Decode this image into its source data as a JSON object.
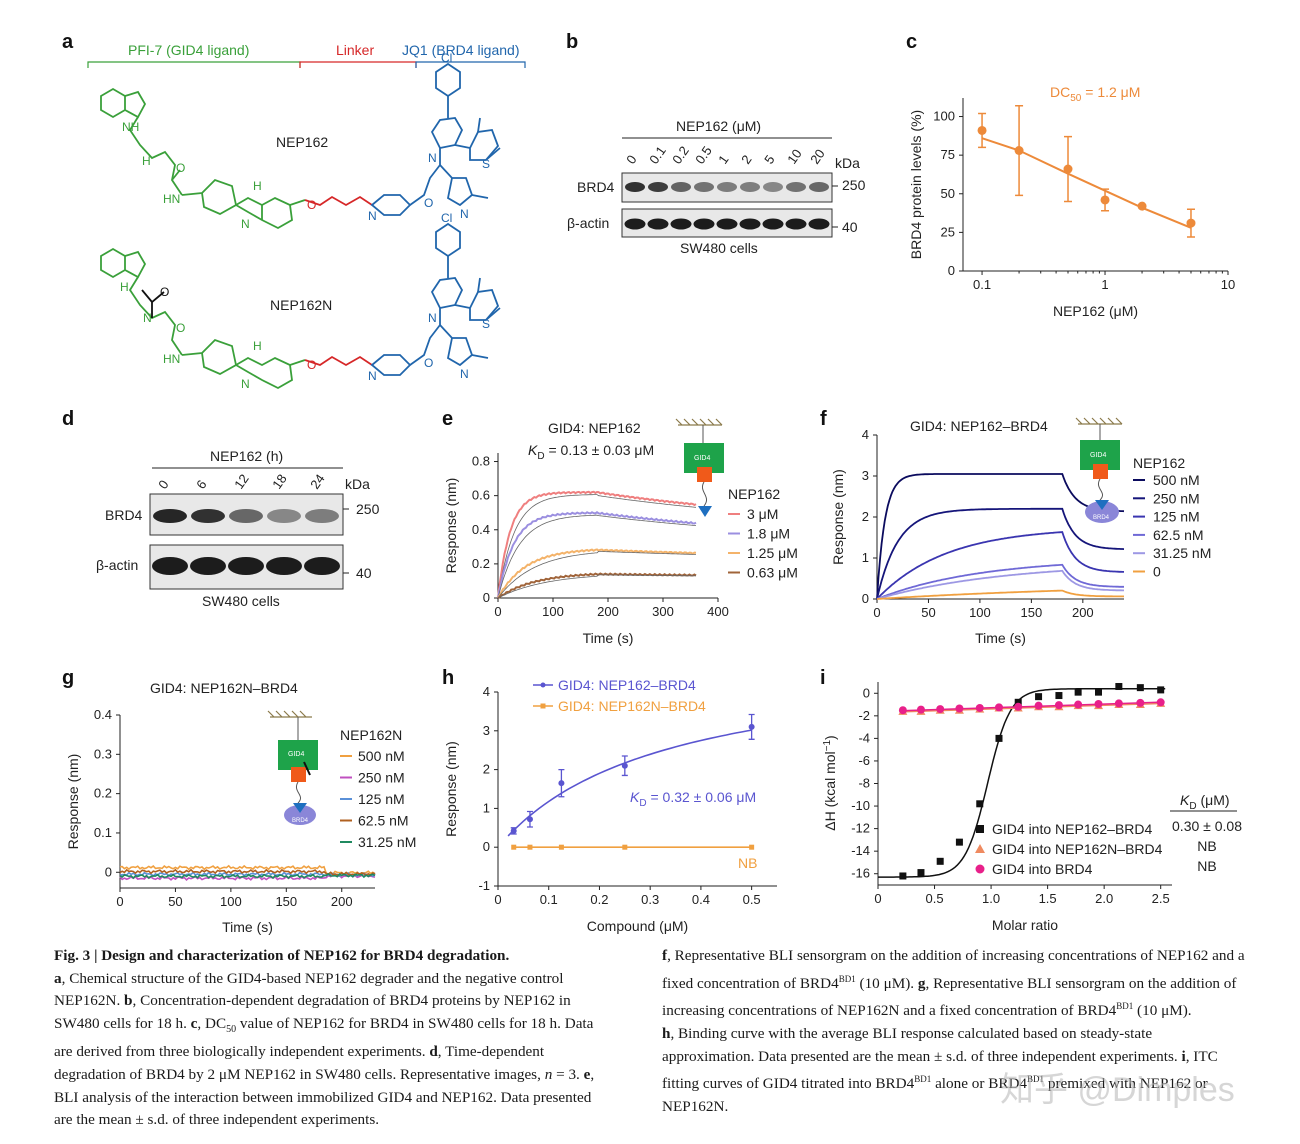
{
  "panels": {
    "a": {
      "label": "a",
      "segments": [
        {
          "text": "PFI-7 (GID4 ligand)",
          "color": "#3aa03a"
        },
        {
          "text": "Linker",
          "color": "#d62728"
        },
        {
          "text": "JQ1 (BRD4 ligand)",
          "color": "#2166ac"
        }
      ],
      "mol1": "NEP162",
      "mol2": "NEP162N",
      "atoms": {
        "nh": "NH",
        "h": "H",
        "n": "N",
        "o": "O",
        "cl": "Cl",
        "s": "S",
        "hn": "HN"
      }
    },
    "b": {
      "label": "b",
      "treatment": "NEP162 (μM)",
      "lanes": [
        "0",
        "0.1",
        "0.2",
        "0.5",
        "1",
        "2",
        "5",
        "10",
        "20"
      ],
      "rows": [
        "BRD4",
        "β-actin"
      ],
      "kda_header": "kDa",
      "kda": [
        "250",
        "40"
      ],
      "cells": "SW480 cells"
    },
    "d": {
      "label": "d",
      "treatment": "NEP162 (h)",
      "lanes": [
        "0",
        "6",
        "12",
        "18",
        "24"
      ],
      "rows": [
        "BRD4",
        "β-actin"
      ],
      "kda_header": "kDa",
      "kda": [
        "250",
        "40"
      ],
      "cells": "SW480 cells"
    }
  },
  "chart_data": [
    {
      "panel": "c",
      "type": "scatter",
      "title": "DC50 = 1.2 μM",
      "title_main": "DC",
      "title_sub": "50",
      "title_rest": " = 1.2 μM",
      "xlabel": "NEP162 (μM)",
      "ylabel": "BRD4 protein levels (%)",
      "xscale": "log",
      "xlim": [
        0.07,
        10
      ],
      "ylim": [
        0,
        112
      ],
      "xticks": [
        0.1,
        1,
        10
      ],
      "xticklabels": [
        "0.1",
        "1",
        "10"
      ],
      "yticks": [
        0,
        25,
        50,
        75,
        100
      ],
      "yticklabels": [
        "0",
        "25",
        "50",
        "75",
        "100"
      ],
      "x": [
        0.1,
        0.2,
        0.5,
        1,
        2,
        5
      ],
      "y": [
        91,
        78,
        66,
        46,
        42,
        31
      ],
      "err": [
        11,
        29,
        21,
        7,
        0,
        9
      ],
      "fit_x": [
        0.1,
        0.2,
        0.5,
        1,
        2,
        5
      ],
      "fit_y": [
        86,
        78,
        63,
        52,
        41,
        28
      ],
      "color": "#ed8a3a"
    },
    {
      "panel": "e",
      "type": "line",
      "title": "GID4: NEP162",
      "kd_main": "K",
      "kd_sub": "D",
      "kd_rest": " = 0.13 ± 0.03 μM",
      "xlabel": "Time (s)",
      "ylabel": "Response (nm)",
      "xlim": [
        0,
        400
      ],
      "ylim": [
        0,
        0.85
      ],
      "xticks": [
        0,
        100,
        200,
        300,
        400
      ],
      "xticklabels": [
        "0",
        "100",
        "200",
        "300",
        "400"
      ],
      "yticks": [
        0,
        0.2,
        0.4,
        0.6,
        0.8
      ],
      "yticklabels": [
        "0",
        "0.2",
        "0.4",
        "0.6",
        "0.8"
      ],
      "legend_title": "NEP162",
      "legend_position": "right",
      "t_assoc": 180,
      "t_end": 360,
      "series": [
        {
          "name": "3 μM",
          "color": "#ef7f7f",
          "Rmax": 0.62,
          "kobs": 0.045,
          "kd": 0.0012,
          "resid": 0.18
        },
        {
          "name": "1.8 μM",
          "color": "#9b8fe0",
          "Rmax": 0.5,
          "kobs": 0.035,
          "kd": 0.0012,
          "resid": 0.2
        },
        {
          "name": "1.25 μM",
          "color": "#f4b36a",
          "Rmax": 0.29,
          "kobs": 0.02,
          "kd": 0.0008,
          "resid": 0.12
        },
        {
          "name": "0.63 μM",
          "color": "#a0643a",
          "Rmax": 0.15,
          "kobs": 0.015,
          "kd": 0.0006,
          "resid": 0.08
        }
      ]
    },
    {
      "panel": "f",
      "type": "line",
      "title": "GID4: NEP162–BRD4",
      "xlabel": "Time (s)",
      "ylabel": "Response (nm)",
      "xlim": [
        0,
        240
      ],
      "ylim": [
        0,
        4
      ],
      "xticks": [
        0,
        50,
        100,
        150,
        200
      ],
      "xticklabels": [
        "0",
        "50",
        "100",
        "150",
        "200"
      ],
      "yticks": [
        0,
        1,
        2,
        3,
        4
      ],
      "yticklabels": [
        "0",
        "1",
        "2",
        "3",
        "4"
      ],
      "legend_title": "NEP162",
      "legend_position": "right",
      "t_assoc": 180,
      "t_end": 240,
      "series": [
        {
          "name": "500 nM",
          "color": "#0b0b5e",
          "Rmax": 3.05,
          "kobs": 0.13,
          "kd": 0.03,
          "resid": 0.7
        },
        {
          "name": "250 nM",
          "color": "#15157a",
          "Rmax": 2.2,
          "kobs": 0.05,
          "kd": 0.03,
          "resid": 0.55
        },
        {
          "name": "125 nM",
          "color": "#3a35b0",
          "Rmax": 1.75,
          "kobs": 0.015,
          "kd": 0.03,
          "resid": 0.4
        },
        {
          "name": "62.5 nM",
          "color": "#6f69d6",
          "Rmax": 1.0,
          "kobs": 0.01,
          "kd": 0.03,
          "resid": 0.35
        },
        {
          "name": "31.25 nM",
          "color": "#9d98e4",
          "Rmax": 0.9,
          "kobs": 0.008,
          "kd": 0.03,
          "resid": 0.3
        },
        {
          "name": "0",
          "color": "#f0a040",
          "Rmax": 0.4,
          "kobs": 0.004,
          "kd": 0.01,
          "resid": 0.3
        }
      ]
    },
    {
      "panel": "g",
      "type": "line",
      "title": "GID4: NEP162N–BRD4",
      "xlabel": "Time (s)",
      "ylabel": "Response (nm)",
      "xlim": [
        0,
        230
      ],
      "ylim": [
        -0.04,
        0.4
      ],
      "xticks": [
        0,
        50,
        100,
        150,
        200
      ],
      "xticklabels": [
        "0",
        "50",
        "100",
        "150",
        "200"
      ],
      "yticks": [
        0,
        0.1,
        0.2,
        0.3,
        0.4
      ],
      "yticklabels": [
        "0",
        "0.1",
        "0.2",
        "0.3",
        "0.4"
      ],
      "legend_title": "NEP162N",
      "legend_position": "right",
      "series": [
        {
          "name": "500 nM",
          "color": "#f0a040",
          "level": 0.012
        },
        {
          "name": "250 nM",
          "color": "#c050c0",
          "level": -0.015
        },
        {
          "name": "125 nM",
          "color": "#5a90d8",
          "level": -0.005
        },
        {
          "name": "62.5 nM",
          "color": "#b06020",
          "level": 0.002
        },
        {
          "name": "31.25 nM",
          "color": "#208a60",
          "level": -0.01
        }
      ]
    },
    {
      "panel": "h",
      "type": "scatter",
      "xlabel": "Compound (μM)",
      "ylabel": "Response (nm)",
      "xlim": [
        0,
        0.55
      ],
      "ylim": [
        -1,
        4
      ],
      "xticks": [
        0,
        0.1,
        0.2,
        0.3,
        0.4,
        0.5
      ],
      "xticklabels": [
        "0",
        "0.1",
        "0.2",
        "0.3",
        "0.4",
        "0.5"
      ],
      "yticks": [
        -1,
        0,
        1,
        2,
        3,
        4
      ],
      "yticklabels": [
        "-1",
        "0",
        "1",
        "2",
        "3",
        "4"
      ],
      "kd_main": "K",
      "kd_sub": "D",
      "kd_rest": " = 0.32 ± 0.06 μM",
      "nb": "NB",
      "Bmax": 4.95,
      "Kd": 0.32,
      "series": [
        {
          "name": "GID4: NEP162–BRD4",
          "color": "#5a55d0",
          "x": [
            0.031,
            0.063,
            0.125,
            0.25,
            0.5
          ],
          "y": [
            0.42,
            0.72,
            1.65,
            2.1,
            3.1
          ],
          "err": [
            0.08,
            0.2,
            0.35,
            0.25,
            0.32
          ]
        },
        {
          "name": "GID4: NEP162N–BRD4",
          "color": "#f0a040",
          "x": [
            0.031,
            0.063,
            0.125,
            0.25,
            0.5
          ],
          "y": [
            0,
            0,
            0,
            0,
            0
          ],
          "err": [
            0,
            0,
            0,
            0,
            0
          ]
        }
      ]
    },
    {
      "panel": "i",
      "type": "scatter",
      "xlabel": "Molar ratio",
      "ylabel": "ΔH (kcal mol⁻¹)",
      "ylabel_main": "ΔH (kcal mol",
      "ylabel_sup": "−1",
      "ylabel_end": ")",
      "xlim": [
        0,
        2.6
      ],
      "ylim": [
        -17,
        1
      ],
      "xticks": [
        0,
        0.5,
        1.0,
        1.5,
        2.0,
        2.5
      ],
      "xticklabels": [
        "0",
        "0.5",
        "1.0",
        "1.5",
        "2.0",
        "2.5"
      ],
      "yticks": [
        0,
        -2,
        -4,
        -6,
        -8,
        -10,
        -12,
        -14,
        -16
      ],
      "yticklabels": [
        "0",
        "-2",
        "-4",
        "-6",
        "-8",
        "-10",
        "-12",
        "-14",
        "-16"
      ],
      "kd_header": "K",
      "kd_header_sub": "D",
      "kd_header_rest": " (μM)",
      "series": [
        {
          "name": "GID4 into NEP162–BRD4",
          "marker": "square",
          "color": "#111111",
          "kd_value": "0.30 ± 0.08",
          "x": [
            0.22,
            0.38,
            0.55,
            0.72,
            0.9,
            1.07,
            1.24,
            1.42,
            1.6,
            1.77,
            1.95,
            2.13,
            2.32,
            2.5
          ],
          "y": [
            -16.2,
            -15.9,
            -14.9,
            -13.2,
            -9.8,
            -4.0,
            -0.8,
            -0.3,
            -0.2,
            0.1,
            0.1,
            0.6,
            0.5,
            0.3
          ]
        },
        {
          "name": "GID4 into NEP162N–BRD4",
          "marker": "triangle",
          "color": "#ef8a60",
          "kd_value": "NB",
          "x": [
            0.22,
            0.38,
            0.55,
            0.72,
            0.9,
            1.07,
            1.24,
            1.42,
            1.6,
            1.77,
            1.95,
            2.13,
            2.32,
            2.5
          ],
          "y": [
            -1.6,
            -1.6,
            -1.5,
            -1.5,
            -1.4,
            -1.3,
            -1.3,
            -1.2,
            -1.2,
            -1.1,
            -1.1,
            -1.0,
            -1.0,
            -0.9
          ]
        },
        {
          "name": "GID4 into BRD4",
          "marker": "circle",
          "color": "#e8208a",
          "kd_value": "NB",
          "x": [
            0.22,
            0.38,
            0.55,
            0.72,
            0.9,
            1.07,
            1.24,
            1.42,
            1.6,
            1.77,
            1.95,
            2.13,
            2.32,
            2.5
          ],
          "y": [
            -1.5,
            -1.45,
            -1.4,
            -1.35,
            -1.3,
            -1.25,
            -1.2,
            -1.1,
            -1.05,
            -1.0,
            -0.95,
            -0.9,
            -0.85,
            -0.8
          ]
        }
      ]
    }
  ],
  "caption": {
    "fig_label": "Fig. 3 | Design and characterization of NEP162 for BRD4 degradation.",
    "part_a": ", Chemical structure of the GID4-based NEP162 degrader and the negative control NEP162N. ",
    "part_b": ", Concentration-dependent degradation of BRD4 proteins by NEP162 in SW480 cells for 18 h. ",
    "part_c1": ", DC",
    "part_c_sub": "50",
    "part_c2": " value of NEP162 for BRD4 in SW480 cells for 18 h. Data are derived from three biologically independent experiments. ",
    "part_d": ", Time-dependent degradation of BRD4 by 2 μM NEP162 in SW480 cells. Representative images, ",
    "part_d_n": "n",
    "part_d2": " = 3. ",
    "part_e": ", BLI analysis of the interaction between immobilized GID4 and NEP162. Data presented are the mean ± s.d. of three independent experiments. ",
    "part_f": ", Representative BLI sensorgram on the addition of increasing concentrations of NEP162 and a fixed concentration of BRD4",
    "sup_bd1": "BD1",
    "part_f2": " (10 μM). ",
    "part_g": ", Representative BLI sensorgram on the addition of increasing concentrations of NEP162N and a fixed concentration of BRD4",
    "part_g2": " (10 μM).",
    "part_h": ", Binding curve with the average BLI response calculated based on steady-state approximation. Data presented are the mean ± s.d. of three independent experiments. ",
    "part_i": ", ITC fitting curves of GID4 titrated into BRD4",
    "part_i2": " alone or BRD4",
    "part_i3": " premixed with NEP162 or NEP162N.",
    "labels": [
      "a",
      "b",
      "c",
      "d",
      "e",
      "f",
      "g",
      "h",
      "i"
    ]
  },
  "watermark": "知乎 @Dimples",
  "schematic": {
    "gid4": "GID4",
    "brd4": "BRD4"
  }
}
